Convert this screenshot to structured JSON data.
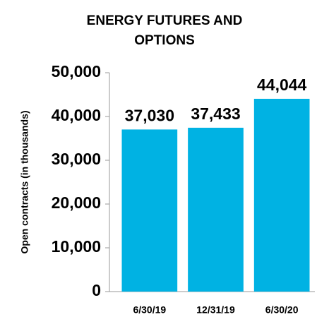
{
  "chart_data": {
    "type": "bar",
    "title": "ENERGY FUTURES AND OPTIONS",
    "y_label": "Open contracts (in thousands)",
    "categories": [
      "6/30/19",
      "12/31/19",
      "6/30/20"
    ],
    "values": [
      37030,
      37433,
      44044
    ],
    "value_labels": [
      "37,030",
      "37,433",
      "44,044"
    ],
    "color": "#00b2e3",
    "ylim": [
      0,
      50000
    ],
    "yticks": [
      0,
      {
        "value": 10000,
        "label": "10,000"
      },
      {
        "value": 20000,
        "label": "20,000"
      },
      {
        "value": 30000,
        "label": "30,000"
      },
      {
        "value": 40000,
        "label": "40,000"
      },
      {
        "value": 50000,
        "label": "50,000"
      }
    ],
    "grid": false
  }
}
